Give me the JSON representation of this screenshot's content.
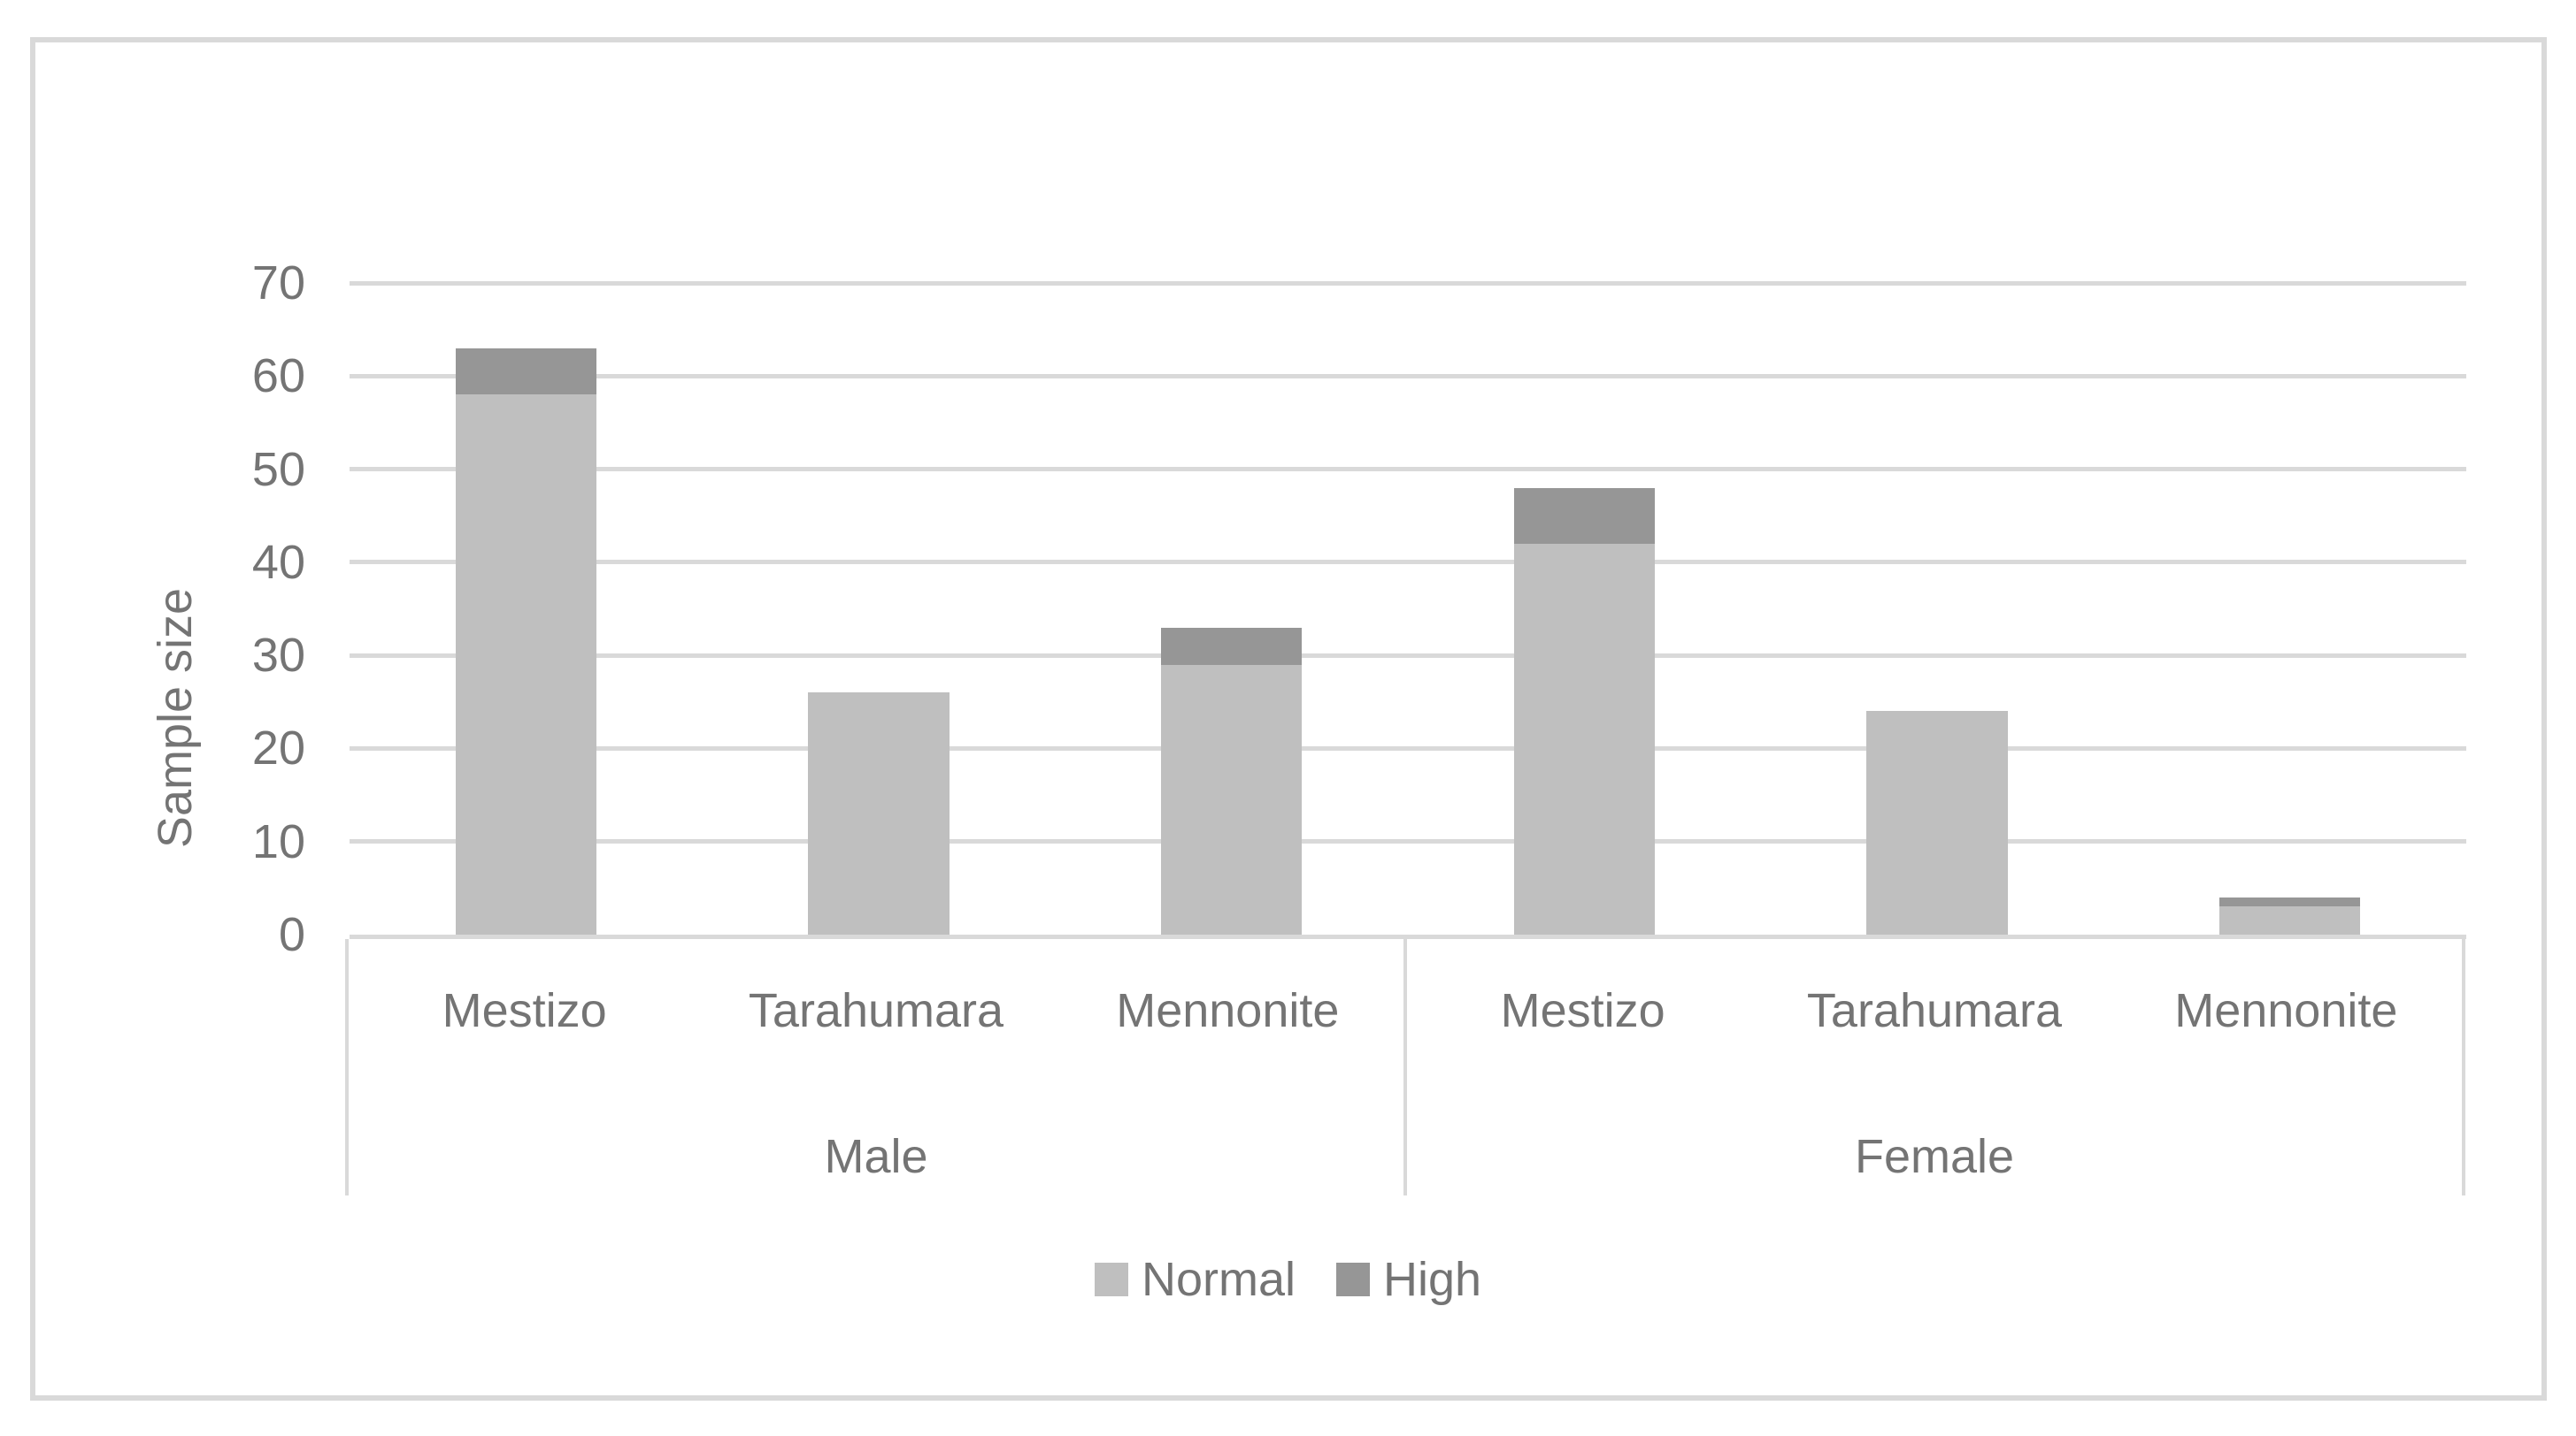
{
  "figure": {
    "background": "#ffffff",
    "border_color": "#d9d9d9"
  },
  "colors": {
    "normal_series": "#bfbfbf",
    "high_series": "#969696",
    "gridline": "#d9d9d9",
    "axis_line": "#d9d9d9",
    "text": "#747474"
  },
  "chart_data": {
    "type": "bar",
    "stacked": true,
    "title": "",
    "xlabel": "",
    "ylabel": "Sample size",
    "ylim": [
      0,
      70
    ],
    "yticks": [
      0,
      10,
      20,
      30,
      40,
      50,
      60,
      70
    ],
    "grid": true,
    "legend_position": "bottom",
    "groups": [
      {
        "label": "Male",
        "categories": [
          "Mestizo",
          "Tarahumara",
          "Mennonite"
        ]
      },
      {
        "label": "Female",
        "categories": [
          "Mestizo",
          "Tarahumara",
          "Mennonite"
        ]
      }
    ],
    "categories_flat": [
      "Mestizo",
      "Tarahumara",
      "Mennonite",
      "Mestizo",
      "Tarahumara",
      "Mennonite"
    ],
    "series": [
      {
        "name": "Normal",
        "color": "#bfbfbf",
        "values": [
          58,
          26,
          29,
          42,
          24,
          3
        ]
      },
      {
        "name": "High",
        "color": "#969696",
        "values": [
          5,
          0,
          4,
          6,
          0,
          1
        ]
      }
    ],
    "totals": [
      63,
      26,
      33,
      48,
      24,
      4
    ]
  }
}
